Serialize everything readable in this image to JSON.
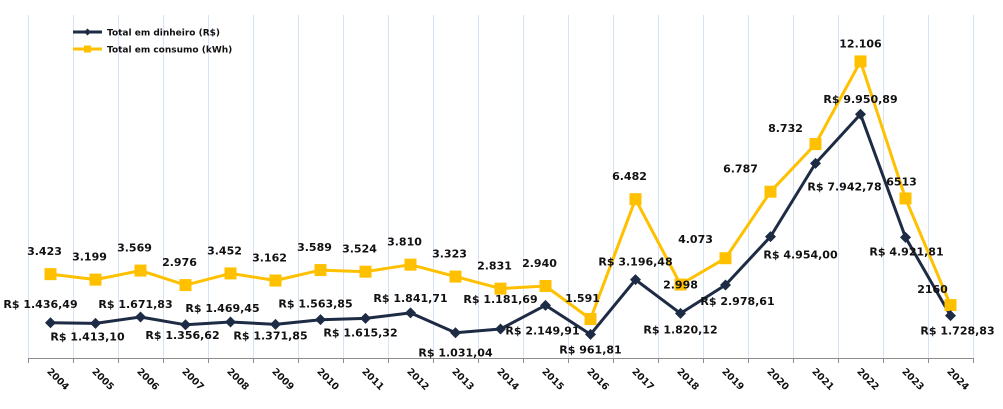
{
  "chart_data": {
    "type": "line",
    "title": "",
    "xlabel": "",
    "ylabel": "",
    "ylim": [
      0,
      14000
    ],
    "grid": "vertical",
    "legend_position": "top-left",
    "categories": [
      "2004",
      "2005",
      "2006",
      "2007",
      "2008",
      "2009",
      "2010",
      "2011",
      "2012",
      "2013",
      "2014",
      "2015",
      "2016",
      "2017",
      "2018",
      "2019",
      "2020",
      "2021",
      "2022",
      "2023",
      "2024"
    ],
    "series": [
      {
        "name": "Total em dinheiro (R$)",
        "color": "#1e2b44",
        "marker": "diamond",
        "values": [
          1436.49,
          1413.1,
          1671.83,
          1356.62,
          1469.45,
          1371.85,
          1563.85,
          1615.32,
          1841.71,
          1031.04,
          1181.69,
          2149.91,
          961.81,
          3196.48,
          1820.12,
          2978.61,
          4954.0,
          7942.78,
          9950.89,
          4921.81,
          1728.83
        ],
        "labels": [
          "R$ 1.436,49",
          "R$ 1.413,10",
          "R$ 1.671,83",
          "R$ 1.356,62",
          "R$ 1.469,45",
          "R$ 1.371,85",
          "R$ 1.563,85",
          "R$ 1.615,32",
          "R$ 1.841,71",
          "R$ 1.031,04",
          "R$ 1.181,69",
          "R$ 2.149,91",
          "R$ 961,81",
          "R$ 3.196,48",
          "R$ 1.820,12",
          "R$ 2.978,61",
          "R$ 4.954,00",
          "R$ 7.942,78",
          "R$ 9.950,89",
          "R$ 4.921,81",
          "R$ 1.728,83"
        ]
      },
      {
        "name": "Total em consumo (kWh)",
        "color": "#ffc000",
        "marker": "square",
        "values": [
          3423,
          3199,
          3569,
          2976,
          3452,
          3162,
          3589,
          3524,
          3810,
          3323,
          2831,
          2940,
          1591,
          6482,
          2998,
          4073,
          6787,
          8732,
          12106,
          6513,
          2160
        ],
        "labels": [
          "3.423",
          "3.199",
          "3.569",
          "2.976",
          "3.452",
          "3.162",
          "3.589",
          "3.524",
          "3.810",
          "3.323",
          "2.831",
          "2.940",
          "1.591",
          "6.482",
          "2.998",
          "4.073",
          "6.787",
          "8.732",
          "12.106",
          "6513",
          "2160"
        ]
      }
    ]
  }
}
